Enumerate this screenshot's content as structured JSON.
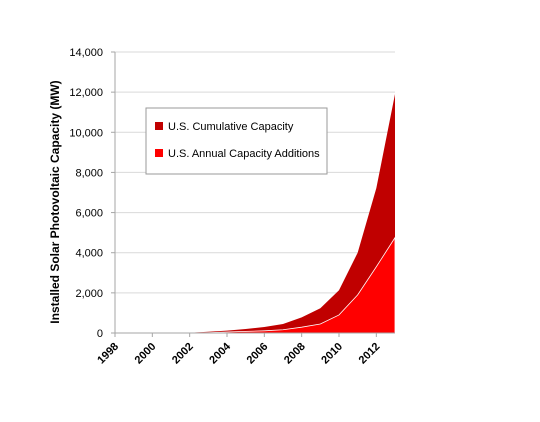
{
  "chart_data": {
    "type": "area",
    "ylabel": "Installed Solar Photovoltaic Capacity (MW)",
    "xlabel": "",
    "title": "",
    "ylim": [
      0,
      14000
    ],
    "xlim": [
      1998,
      2013
    ],
    "yticks": [
      {
        "value": 0,
        "label": "0"
      },
      {
        "value": 2000,
        "label": "2,000"
      },
      {
        "value": 4000,
        "label": "4,000"
      },
      {
        "value": 6000,
        "label": "6,000"
      },
      {
        "value": 8000,
        "label": "8,000"
      },
      {
        "value": 10000,
        "label": "10,000"
      },
      {
        "value": 12000,
        "label": "12,000"
      },
      {
        "value": 14000,
        "label": "14,000"
      }
    ],
    "xticks": [
      {
        "value": 1998,
        "label": "1998"
      },
      {
        "value": 2000,
        "label": "2000"
      },
      {
        "value": 2002,
        "label": "2002"
      },
      {
        "value": 2004,
        "label": "2004"
      },
      {
        "value": 2006,
        "label": "2006"
      },
      {
        "value": 2008,
        "label": "2008"
      },
      {
        "value": 2010,
        "label": "2010"
      },
      {
        "value": 2012,
        "label": "2012"
      }
    ],
    "grid": true,
    "legend_position": "upper-left inside plot",
    "x": [
      1998,
      1999,
      2000,
      2001,
      2002,
      2003,
      2004,
      2005,
      2006,
      2007,
      2008,
      2009,
      2010,
      2011,
      2012,
      2013
    ],
    "series": [
      {
        "name": "U.S. Cumulative Capacity",
        "color": "#c00000",
        "values": [
          0,
          0,
          0,
          0,
          10,
          60,
          120,
          200,
          300,
          450,
          780,
          1230,
          2130,
          4000,
          7220,
          11900
        ]
      },
      {
        "name": "U.S. Annual Capacity Additions",
        "color": "#ff0000",
        "values": [
          0,
          0,
          0,
          0,
          5,
          20,
          50,
          80,
          110,
          160,
          290,
          450,
          900,
          1900,
          3300,
          4750
        ]
      }
    ]
  }
}
